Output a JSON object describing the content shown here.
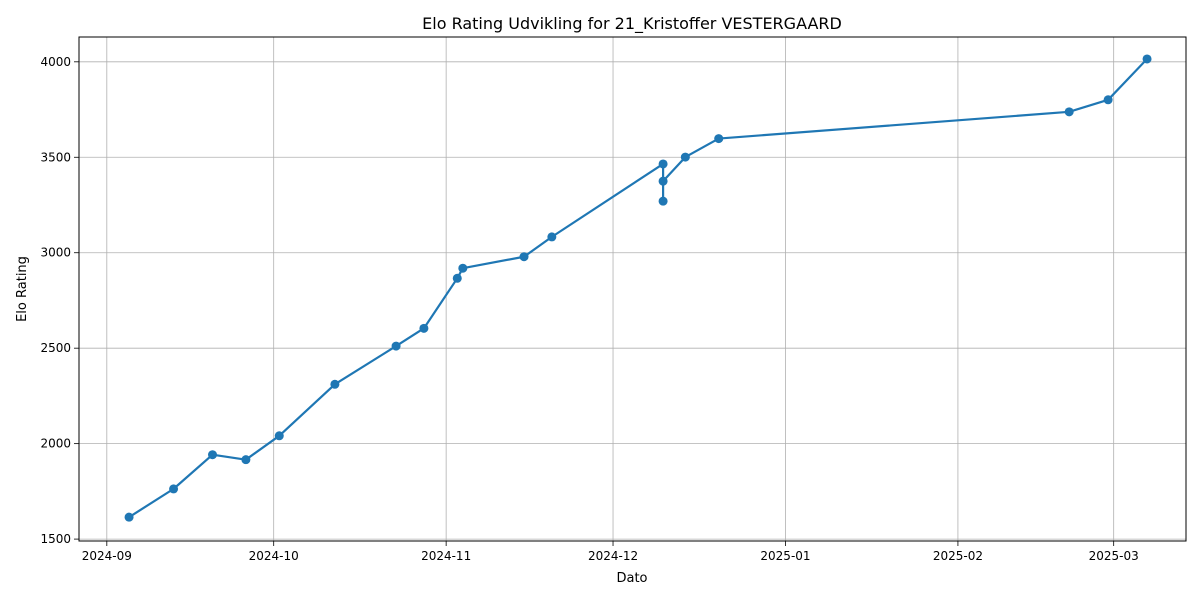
{
  "chart_data": {
    "type": "line",
    "title": "Elo Rating Udvikling for 21_Kristoffer VESTERGAARD",
    "xlabel": "Dato",
    "ylabel": "Elo Rating",
    "xlim": [
      "2024-08-27",
      "2025-03-14"
    ],
    "ylim": [
      1490,
      4130
    ],
    "x_ticks": [
      "2024-09",
      "2024-10",
      "2024-11",
      "2024-12",
      "2025-01",
      "2025-02",
      "2025-03"
    ],
    "y_ticks": [
      1500,
      2000,
      2500,
      3000,
      3500,
      4000
    ],
    "grid": true,
    "series": [
      {
        "color": "#1f77b4",
        "points": [
          {
            "x": "2024-09-05",
            "y": 1615
          },
          {
            "x": "2024-09-13",
            "y": 1763
          },
          {
            "x": "2024-09-20",
            "y": 1942
          },
          {
            "x": "2024-09-26",
            "y": 1916
          },
          {
            "x": "2024-10-02",
            "y": 2041
          },
          {
            "x": "2024-10-12",
            "y": 2311
          },
          {
            "x": "2024-10-23",
            "y": 2511
          },
          {
            "x": "2024-10-28",
            "y": 2604
          },
          {
            "x": "2024-11-03",
            "y": 2866
          },
          {
            "x": "2024-11-04",
            "y": 2919
          },
          {
            "x": "2024-11-15",
            "y": 2979
          },
          {
            "x": "2024-11-20",
            "y": 3083
          },
          {
            "x": "2024-12-10",
            "y": 3465
          },
          {
            "x": "2024-12-10",
            "y": 3270
          },
          {
            "x": "2024-12-10",
            "y": 3375
          },
          {
            "x": "2024-12-14",
            "y": 3501
          },
          {
            "x": "2024-12-20",
            "y": 3598
          },
          {
            "x": "2025-02-21",
            "y": 3738
          },
          {
            "x": "2025-02-28",
            "y": 3801
          },
          {
            "x": "2025-03-07",
            "y": 4015
          }
        ]
      }
    ]
  }
}
